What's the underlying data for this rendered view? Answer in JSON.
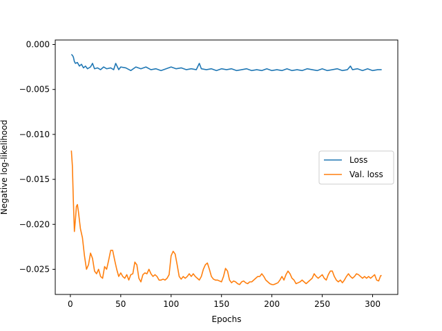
{
  "chart_data": {
    "type": "line",
    "xlabel": "Epochs",
    "ylabel": "Negative log-likelihood",
    "xlim": [
      -15,
      325
    ],
    "ylim": [
      -0.0278,
      0.0005
    ],
    "x_ticks": [
      0,
      50,
      100,
      150,
      200,
      250,
      300
    ],
    "x_tick_labels": [
      "0",
      "50",
      "100",
      "150",
      "200",
      "250",
      "300"
    ],
    "y_ticks": [
      0.0,
      -0.005,
      -0.01,
      -0.015,
      -0.02,
      -0.025
    ],
    "y_tick_labels": [
      "0.000",
      "−0.005",
      "−0.010",
      "−0.015",
      "−0.020",
      "−0.025"
    ],
    "grid": false,
    "legend_position": "center-right",
    "series": [
      {
        "name": "Loss",
        "color": "#1f77b4",
        "points": [
          [
            1,
            -0.0011
          ],
          [
            2,
            -0.0012
          ],
          [
            3,
            -0.0014
          ],
          [
            4,
            -0.0019
          ],
          [
            5,
            -0.0021
          ],
          [
            7,
            -0.002
          ],
          [
            9,
            -0.0024
          ],
          [
            11,
            -0.0022
          ],
          [
            13,
            -0.0026
          ],
          [
            15,
            -0.0024
          ],
          [
            17,
            -0.0027
          ],
          [
            20,
            -0.0025
          ],
          [
            22,
            -0.0021
          ],
          [
            24,
            -0.0027
          ],
          [
            27,
            -0.0026
          ],
          [
            30,
            -0.0028
          ],
          [
            33,
            -0.0025
          ],
          [
            36,
            -0.0027
          ],
          [
            40,
            -0.0026
          ],
          [
            43,
            -0.0028
          ],
          [
            45,
            -0.0021
          ],
          [
            48,
            -0.0028
          ],
          [
            50,
            -0.0025
          ],
          [
            55,
            -0.0026
          ],
          [
            60,
            -0.0029
          ],
          [
            65,
            -0.0025
          ],
          [
            70,
            -0.0027
          ],
          [
            75,
            -0.0025
          ],
          [
            80,
            -0.0028
          ],
          [
            85,
            -0.0027
          ],
          [
            90,
            -0.0029
          ],
          [
            95,
            -0.0027
          ],
          [
            100,
            -0.0025
          ],
          [
            105,
            -0.0027
          ],
          [
            110,
            -0.0026
          ],
          [
            115,
            -0.0028
          ],
          [
            120,
            -0.0027
          ],
          [
            125,
            -0.0028
          ],
          [
            128,
            -0.0021
          ],
          [
            130,
            -0.0027
          ],
          [
            135,
            -0.0028
          ],
          [
            140,
            -0.0027
          ],
          [
            145,
            -0.0029
          ],
          [
            150,
            -0.0027
          ],
          [
            155,
            -0.0028
          ],
          [
            160,
            -0.0027
          ],
          [
            165,
            -0.0029
          ],
          [
            170,
            -0.0028
          ],
          [
            175,
            -0.0027
          ],
          [
            180,
            -0.0029
          ],
          [
            185,
            -0.0028
          ],
          [
            190,
            -0.0029
          ],
          [
            195,
            -0.0027
          ],
          [
            200,
            -0.0029
          ],
          [
            205,
            -0.0028
          ],
          [
            210,
            -0.0029
          ],
          [
            215,
            -0.0027
          ],
          [
            220,
            -0.0029
          ],
          [
            225,
            -0.0028
          ],
          [
            230,
            -0.0029
          ],
          [
            235,
            -0.0027
          ],
          [
            240,
            -0.0028
          ],
          [
            245,
            -0.0029
          ],
          [
            250,
            -0.0027
          ],
          [
            255,
            -0.0029
          ],
          [
            260,
            -0.0028
          ],
          [
            265,
            -0.0027
          ],
          [
            270,
            -0.0029
          ],
          [
            275,
            -0.0028
          ],
          [
            278,
            -0.0024
          ],
          [
            280,
            -0.0028
          ],
          [
            285,
            -0.0027
          ],
          [
            290,
            -0.0029
          ],
          [
            295,
            -0.0027
          ],
          [
            300,
            -0.0029
          ],
          [
            305,
            -0.0028
          ],
          [
            309,
            -0.0028
          ]
        ]
      },
      {
        "name": "Val. loss",
        "color": "#ff7f0e",
        "points": [
          [
            1,
            -0.0118
          ],
          [
            2,
            -0.0135
          ],
          [
            3,
            -0.0175
          ],
          [
            4,
            -0.0208
          ],
          [
            5,
            -0.0195
          ],
          [
            6,
            -0.018
          ],
          [
            7,
            -0.0178
          ],
          [
            8,
            -0.0186
          ],
          [
            10,
            -0.0205
          ],
          [
            12,
            -0.0215
          ],
          [
            14,
            -0.0235
          ],
          [
            16,
            -0.025
          ],
          [
            18,
            -0.0245
          ],
          [
            20,
            -0.0232
          ],
          [
            22,
            -0.0238
          ],
          [
            24,
            -0.0252
          ],
          [
            26,
            -0.0255
          ],
          [
            28,
            -0.025
          ],
          [
            30,
            -0.0258
          ],
          [
            32,
            -0.026
          ],
          [
            34,
            -0.0247
          ],
          [
            36,
            -0.025
          ],
          [
            38,
            -0.024
          ],
          [
            40,
            -0.0229
          ],
          [
            42,
            -0.0229
          ],
          [
            44,
            -0.024
          ],
          [
            46,
            -0.025
          ],
          [
            48,
            -0.0258
          ],
          [
            50,
            -0.0254
          ],
          [
            52,
            -0.0258
          ],
          [
            54,
            -0.026
          ],
          [
            56,
            -0.0256
          ],
          [
            58,
            -0.0262
          ],
          [
            60,
            -0.0256
          ],
          [
            62,
            -0.0255
          ],
          [
            64,
            -0.0242
          ],
          [
            66,
            -0.0245
          ],
          [
            68,
            -0.026
          ],
          [
            70,
            -0.0264
          ],
          [
            72,
            -0.0256
          ],
          [
            74,
            -0.0254
          ],
          [
            76,
            -0.0255
          ],
          [
            78,
            -0.025
          ],
          [
            80,
            -0.0255
          ],
          [
            82,
            -0.0258
          ],
          [
            84,
            -0.0256
          ],
          [
            86,
            -0.0258
          ],
          [
            88,
            -0.0262
          ],
          [
            90,
            -0.0262
          ],
          [
            92,
            -0.0261
          ],
          [
            94,
            -0.0262
          ],
          [
            96,
            -0.026
          ],
          [
            98,
            -0.0256
          ],
          [
            100,
            -0.0235
          ],
          [
            102,
            -0.023
          ],
          [
            104,
            -0.0233
          ],
          [
            106,
            -0.0245
          ],
          [
            108,
            -0.0258
          ],
          [
            110,
            -0.0261
          ],
          [
            112,
            -0.0258
          ],
          [
            114,
            -0.026
          ],
          [
            116,
            -0.0258
          ],
          [
            118,
            -0.0255
          ],
          [
            120,
            -0.0258
          ],
          [
            122,
            -0.0255
          ],
          [
            124,
            -0.0258
          ],
          [
            126,
            -0.026
          ],
          [
            128,
            -0.0262
          ],
          [
            130,
            -0.0258
          ],
          [
            132,
            -0.025
          ],
          [
            134,
            -0.0245
          ],
          [
            136,
            -0.0243
          ],
          [
            138,
            -0.025
          ],
          [
            140,
            -0.0258
          ],
          [
            142,
            -0.0261
          ],
          [
            144,
            -0.0262
          ],
          [
            146,
            -0.0262
          ],
          [
            148,
            -0.0263
          ],
          [
            150,
            -0.0264
          ],
          [
            152,
            -0.0258
          ],
          [
            154,
            -0.0249
          ],
          [
            156,
            -0.0252
          ],
          [
            158,
            -0.0262
          ],
          [
            160,
            -0.0265
          ],
          [
            162,
            -0.0263
          ],
          [
            164,
            -0.0264
          ],
          [
            166,
            -0.0266
          ],
          [
            168,
            -0.0267
          ],
          [
            170,
            -0.0264
          ],
          [
            172,
            -0.0263
          ],
          [
            174,
            -0.0265
          ],
          [
            176,
            -0.0266
          ],
          [
            178,
            -0.0264
          ],
          [
            180,
            -0.0264
          ],
          [
            182,
            -0.0262
          ],
          [
            184,
            -0.026
          ],
          [
            186,
            -0.0258
          ],
          [
            188,
            -0.0258
          ],
          [
            190,
            -0.0255
          ],
          [
            192,
            -0.0258
          ],
          [
            194,
            -0.0262
          ],
          [
            196,
            -0.0264
          ],
          [
            198,
            -0.0266
          ],
          [
            200,
            -0.0267
          ],
          [
            202,
            -0.0267
          ],
          [
            204,
            -0.0266
          ],
          [
            206,
            -0.0265
          ],
          [
            208,
            -0.0262
          ],
          [
            210,
            -0.0258
          ],
          [
            212,
            -0.0262
          ],
          [
            214,
            -0.0256
          ],
          [
            216,
            -0.0252
          ],
          [
            218,
            -0.0255
          ],
          [
            220,
            -0.026
          ],
          [
            222,
            -0.0262
          ],
          [
            224,
            -0.0266
          ],
          [
            226,
            -0.0265
          ],
          [
            228,
            -0.0264
          ],
          [
            230,
            -0.0262
          ],
          [
            232,
            -0.0264
          ],
          [
            234,
            -0.0266
          ],
          [
            236,
            -0.0264
          ],
          [
            238,
            -0.0262
          ],
          [
            240,
            -0.026
          ],
          [
            242,
            -0.0255
          ],
          [
            244,
            -0.0258
          ],
          [
            246,
            -0.026
          ],
          [
            248,
            -0.0258
          ],
          [
            250,
            -0.0256
          ],
          [
            252,
            -0.026
          ],
          [
            254,
            -0.0262
          ],
          [
            256,
            -0.0256
          ],
          [
            258,
            -0.0252
          ],
          [
            260,
            -0.0252
          ],
          [
            262,
            -0.0258
          ],
          [
            264,
            -0.0262
          ],
          [
            266,
            -0.0264
          ],
          [
            268,
            -0.0262
          ],
          [
            270,
            -0.0265
          ],
          [
            272,
            -0.0262
          ],
          [
            274,
            -0.0258
          ],
          [
            276,
            -0.0255
          ],
          [
            278,
            -0.0258
          ],
          [
            280,
            -0.026
          ],
          [
            282,
            -0.0258
          ],
          [
            284,
            -0.0255
          ],
          [
            286,
            -0.0256
          ],
          [
            288,
            -0.0258
          ],
          [
            290,
            -0.026
          ],
          [
            292,
            -0.0258
          ],
          [
            294,
            -0.026
          ],
          [
            296,
            -0.0258
          ],
          [
            298,
            -0.026
          ],
          [
            300,
            -0.0258
          ],
          [
            302,
            -0.0256
          ],
          [
            304,
            -0.0262
          ],
          [
            306,
            -0.0263
          ],
          [
            308,
            -0.0257
          ],
          [
            309,
            -0.0257
          ]
        ]
      }
    ]
  }
}
